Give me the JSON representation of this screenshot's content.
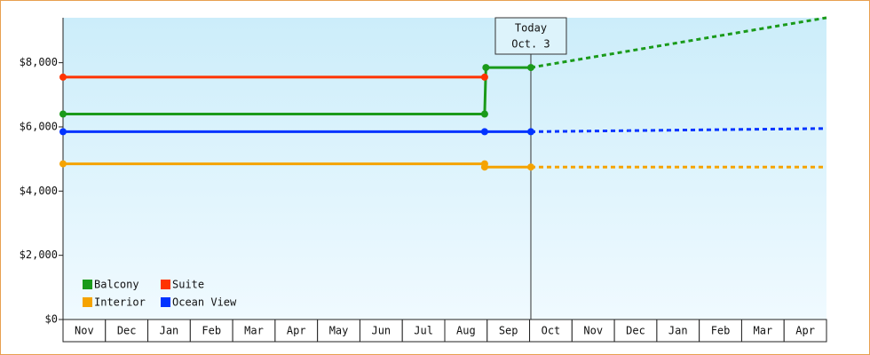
{
  "chart_data": {
    "type": "line",
    "categories": [
      "Nov",
      "Dec",
      "Jan",
      "Feb",
      "Mar",
      "Apr",
      "May",
      "Jun",
      "Jul",
      "Aug",
      "Sep",
      "Oct",
      "Nov",
      "Dec",
      "Jan",
      "Feb",
      "Mar",
      "Apr"
    ],
    "xlim": [
      0,
      18
    ],
    "ylim": [
      0,
      9400
    ],
    "yticks": [
      {
        "value": 0,
        "label": "$0"
      },
      {
        "value": 2000,
        "label": "$2,000"
      },
      {
        "value": 4000,
        "label": "$4,000"
      },
      {
        "value": 6000,
        "label": "$6,000"
      },
      {
        "value": 8000,
        "label": "$8,000"
      }
    ],
    "annotation": {
      "x": 11.03,
      "lines": [
        "Today",
        "Oct. 3"
      ]
    },
    "series": [
      {
        "name": "Balcony",
        "color": "#1a9a1a",
        "x": [
          0,
          9.94,
          9.97,
          11.03
        ],
        "values": [
          6400,
          6400,
          7850,
          7850
        ],
        "forecast": {
          "x": [
            11.03,
            18
          ],
          "values": [
            7850,
            9400
          ]
        }
      },
      {
        "name": "Suite",
        "color": "#ff3300",
        "x": [
          0,
          9.94
        ],
        "values": [
          7550,
          7550
        ]
      },
      {
        "name": "Interior",
        "color": "#f5a300",
        "x": [
          0,
          9.94,
          9.94,
          11.03
        ],
        "values": [
          4850,
          4850,
          4750,
          4750
        ],
        "forecast": {
          "x": [
            11.03,
            18
          ],
          "values": [
            4750,
            4750
          ]
        }
      },
      {
        "name": "Ocean View",
        "color": "#0033ff",
        "x": [
          0,
          9.94,
          11.03
        ],
        "values": [
          5850,
          5850,
          5850
        ],
        "forecast": {
          "x": [
            11.03,
            18
          ],
          "values": [
            5850,
            5950
          ]
        }
      }
    ]
  }
}
